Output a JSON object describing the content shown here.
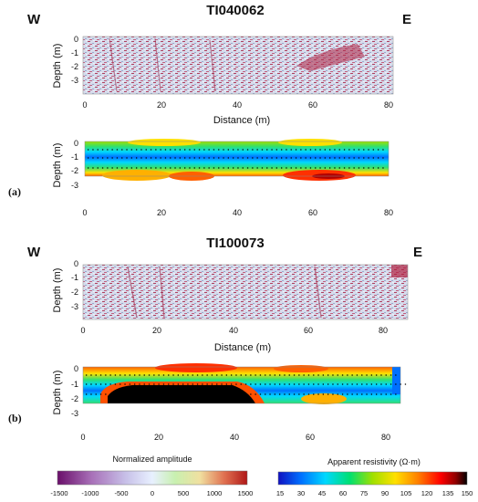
{
  "profile_a": {
    "title": "TI040062",
    "west": "W",
    "east": "E",
    "panel_label": "(a)",
    "gpr": {
      "ylabel": "Depth (m)",
      "xlabel": "Distance (m)",
      "xticks": [
        "0",
        "20",
        "40",
        "60",
        "80"
      ],
      "yticks": [
        "0",
        "-1",
        "-2",
        "-3"
      ]
    },
    "ert": {
      "ylabel": "Depth (m)",
      "xticks": [
        "0",
        "20",
        "40",
        "60",
        "80"
      ],
      "yticks": [
        "0",
        "-1",
        "-2",
        "-3"
      ]
    }
  },
  "profile_b": {
    "title": "TI100073",
    "west": "W",
    "east": "E",
    "panel_label": "(b)",
    "gpr": {
      "ylabel": "Depth (m)",
      "xlabel": "Distance (m)",
      "xticks": [
        "0",
        "20",
        "40",
        "60",
        "80"
      ],
      "yticks": [
        "0",
        "-1",
        "-2",
        "-3"
      ]
    },
    "ert": {
      "ylabel": "Depth (m)",
      "xticks": [
        "0",
        "20",
        "40",
        "60",
        "80"
      ],
      "yticks": [
        "0",
        "-1",
        "-2",
        "-3"
      ]
    }
  },
  "legend_gpr": {
    "title": "Normalized amplitude",
    "ticks": [
      "-1500",
      "-1000",
      "-500",
      "0",
      "500",
      "1000",
      "1500"
    ],
    "colors": [
      "#6a0f6a",
      "#a870b8",
      "#c7c0e8",
      "#e8f0ff",
      "#c8f0b0",
      "#f0e0a0",
      "#e07050",
      "#b01818"
    ]
  },
  "legend_res": {
    "title": "Apparent resistivity (Ω·m)",
    "ticks": [
      "15",
      "30",
      "45",
      "60",
      "75",
      "90",
      "105",
      "120",
      "135",
      "150"
    ],
    "colors": [
      "#1010c0",
      "#0070ff",
      "#00d8ff",
      "#00e070",
      "#a0e000",
      "#ffe000",
      "#ff8000",
      "#ff0000",
      "#900000",
      "#000000"
    ]
  }
}
